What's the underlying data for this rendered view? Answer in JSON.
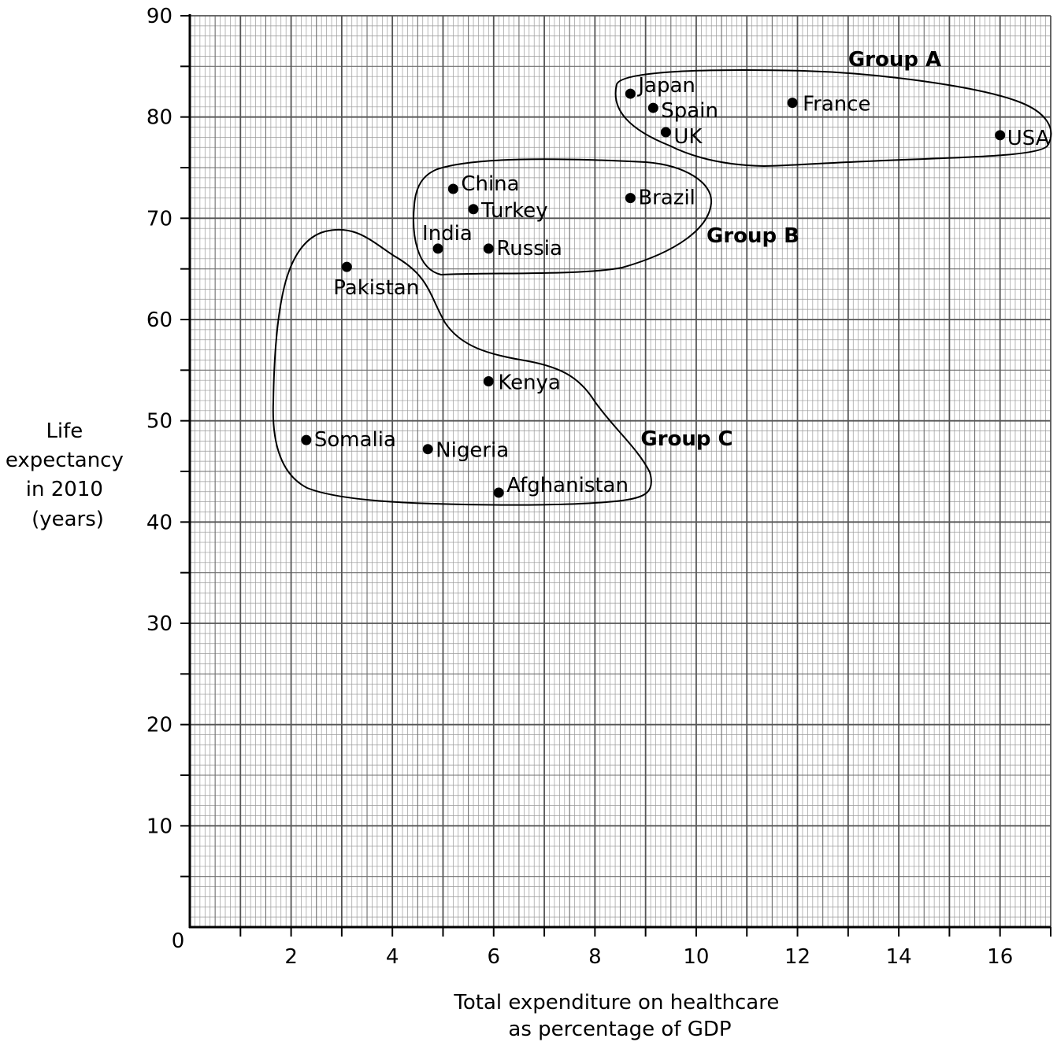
{
  "chart_data": {
    "type": "scatter",
    "title": "",
    "xlabel": [
      "Total expenditure on healthcare",
      "as percentage of GDP"
    ],
    "ylabel": [
      "Life",
      "expectancy",
      "in 2010",
      "(years)"
    ],
    "xlim": [
      0,
      17
    ],
    "ylim": [
      0,
      90
    ],
    "origin_label": "0",
    "x_ticks": [
      2,
      4,
      6,
      8,
      10,
      12,
      14,
      16
    ],
    "y_ticks": [
      10,
      20,
      30,
      40,
      50,
      60,
      70,
      80,
      90
    ],
    "grid": true,
    "points": [
      {
        "label": "Japan",
        "x": 8.7,
        "y": 82.3
      },
      {
        "label": "Spain",
        "x": 9.15,
        "y": 80.9
      },
      {
        "label": "UK",
        "x": 9.4,
        "y": 78.5
      },
      {
        "label": "France",
        "x": 11.9,
        "y": 81.4
      },
      {
        "label": "USA",
        "x": 16.0,
        "y": 78.2
      },
      {
        "label": "China",
        "x": 5.2,
        "y": 72.9
      },
      {
        "label": "Turkey",
        "x": 5.6,
        "y": 70.9
      },
      {
        "label": "Brazil",
        "x": 8.7,
        "y": 72.0
      },
      {
        "label": "India",
        "x": 4.9,
        "y": 67.0
      },
      {
        "label": "Russia",
        "x": 5.9,
        "y": 67.0
      },
      {
        "label": "Pakistan",
        "x": 3.1,
        "y": 65.2
      },
      {
        "label": "Kenya",
        "x": 5.9,
        "y": 53.9
      },
      {
        "label": "Somalia",
        "x": 2.3,
        "y": 48.1
      },
      {
        "label": "Nigeria",
        "x": 4.7,
        "y": 47.2
      },
      {
        "label": "Afghanistan",
        "x": 6.1,
        "y": 42.9
      }
    ],
    "groups": [
      {
        "label": "Group A",
        "members": [
          "Japan",
          "Spain",
          "UK",
          "France",
          "USA"
        ]
      },
      {
        "label": "Group B",
        "members": [
          "China",
          "Turkey",
          "Brazil",
          "India",
          "Russia"
        ]
      },
      {
        "label": "Group C",
        "members": [
          "Pakistan",
          "Kenya",
          "Somalia",
          "Nigeria",
          "Afghanistan"
        ]
      }
    ]
  }
}
